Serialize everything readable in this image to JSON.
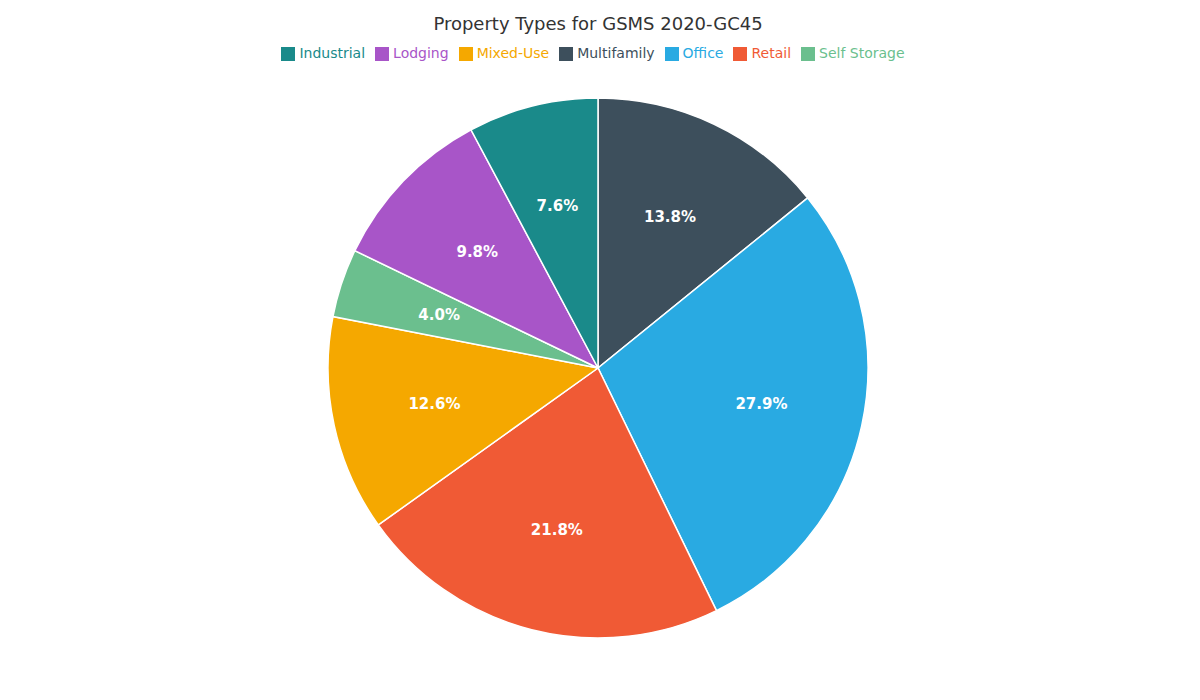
{
  "chart_data": {
    "type": "pie",
    "title": "Property Types for GSMS 2020-GC45",
    "categories": [
      "Multifamily",
      "Office",
      "Retail",
      "Mixed-Use",
      "Self Storage",
      "Lodging",
      "Industrial"
    ],
    "values": [
      13.8,
      27.9,
      21.8,
      12.6,
      4.0,
      9.8,
      7.6
    ],
    "value_labels": [
      "13.8%",
      "27.9%",
      "21.8%",
      "12.6%",
      "4.0%",
      "9.8%",
      "7.6%"
    ],
    "colors": [
      "#3d4f5c",
      "#29aae2",
      "#f05a35",
      "#f5a800",
      "#6bbf8e",
      "#a855c8",
      "#1a8a8a"
    ],
    "data_labels": true,
    "legend": "top"
  }
}
